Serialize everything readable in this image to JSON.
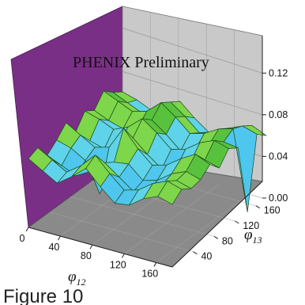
{
  "chart_data": {
    "type": "surface",
    "watermark": "PHENIX Preliminary",
    "x_axis": {
      "label": "φ",
      "subscript": "12",
      "range": [
        0,
        180
      ],
      "ticks": [
        "0",
        "40",
        "80",
        "120",
        "160"
      ]
    },
    "y_axis": {
      "label": "φ",
      "subscript": "13",
      "range": [
        0,
        180
      ],
      "ticks": [
        "40",
        "80",
        "120",
        "160"
      ]
    },
    "z_axis": {
      "range": [
        0,
        0.14
      ],
      "ticks": [
        "0.00",
        "0.04",
        "0.08",
        "0.12"
      ]
    },
    "grid": true,
    "wall_colors": {
      "left_wall": "#7a2f86",
      "back_wall": "#c9c9c9",
      "floor": "#8a8a8a"
    },
    "colormap": [
      "#3a2a8a",
      "#4fc6ee",
      "#5fd3ea",
      "#7ed64a",
      "#58c23e",
      "#f2ee3a"
    ],
    "phi12_grid": [
      0,
      18,
      36,
      54,
      72,
      90,
      108,
      126,
      144,
      162,
      180
    ],
    "phi13_grid": [
      0,
      18,
      36,
      54,
      72,
      90,
      108,
      126,
      144,
      162,
      180
    ],
    "z_values": [
      [
        0.066,
        0.07,
        0.056,
        0.064,
        0.074,
        0.058,
        0.072,
        0.066,
        0.078,
        0.07,
        0.064
      ],
      [
        0.058,
        0.062,
        0.05,
        0.06,
        0.066,
        0.054,
        0.068,
        0.06,
        0.072,
        0.064,
        0.06
      ],
      [
        0.05,
        0.054,
        0.044,
        0.052,
        0.058,
        0.05,
        0.062,
        0.056,
        0.066,
        0.058,
        0.054
      ],
      [
        0.06,
        0.064,
        0.052,
        0.024,
        0.062,
        0.058,
        0.068,
        0.06,
        0.07,
        0.064,
        0.062
      ],
      [
        0.072,
        0.078,
        0.064,
        0.058,
        0.084,
        0.068,
        0.08,
        0.072,
        0.082,
        0.076,
        0.07
      ],
      [
        0.058,
        0.064,
        0.054,
        0.06,
        0.068,
        0.056,
        0.07,
        0.062,
        0.072,
        0.066,
        0.058
      ],
      [
        0.046,
        0.052,
        0.044,
        0.048,
        0.056,
        0.046,
        0.058,
        0.05,
        0.06,
        0.054,
        0.048
      ],
      [
        0.048,
        0.056,
        0.048,
        0.052,
        0.06,
        0.05,
        0.062,
        0.054,
        0.064,
        0.058,
        0.052
      ],
      [
        0.058,
        0.066,
        0.058,
        0.062,
        0.07,
        0.06,
        0.072,
        0.064,
        0.072,
        0.066,
        0.06
      ],
      [
        0.064,
        0.072,
        0.066,
        0.068,
        0.078,
        0.066,
        0.078,
        0.07,
        0.076,
        0.072,
        0.066
      ],
      [
        0.06,
        0.068,
        0.062,
        0.064,
        0.072,
        0.062,
        0.074,
        0.068,
        0.0,
        0.068,
        0.06
      ]
    ]
  },
  "caption": "Figure 10"
}
